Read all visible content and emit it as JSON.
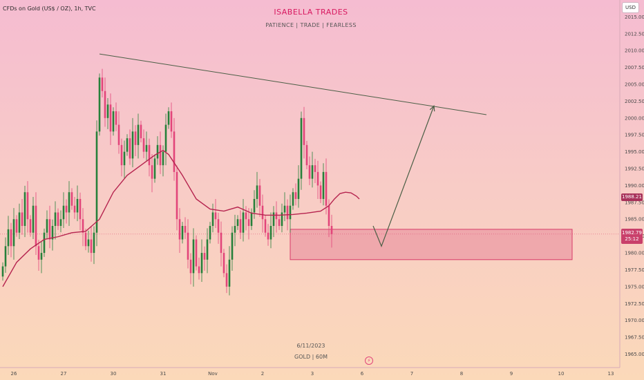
{
  "header": {
    "symbol": "CFDs on Gold (US$ / OZ), 1h, TVC",
    "brand": "ISABELLA TRADES",
    "tagline": "PATIENCE  |  TRADE  |  FEARLESS"
  },
  "watermark": {
    "date": "6/11/2023",
    "subtitle": "GOLD | 60M"
  },
  "currency": "USD",
  "price_tags": {
    "previous": "1988.21",
    "current": "1982.79",
    "countdown": "25:12"
  },
  "colors": {
    "up": "#26803a",
    "down": "#e2457a",
    "ma": "#b5234e",
    "trendline": "#4a5e45",
    "zone_fill": "#e67f96",
    "zone_border": "#d83a68"
  },
  "icons": {
    "replay": "lightning-bolt-icon"
  },
  "chart_data": {
    "type": "candlestick",
    "title": "",
    "xlabel": "",
    "ylabel": "",
    "ylim": [
      1963.0,
      2017.5
    ],
    "yticks": [
      "2015.00",
      "2012.50",
      "2010.00",
      "2007.50",
      "2005.00",
      "2002.50",
      "2000.00",
      "1997.50",
      "1995.00",
      "1992.50",
      "1990.00",
      "1987.50",
      "1985.00",
      "1982.50",
      "1980.00",
      "1977.50",
      "1975.00",
      "1972.50",
      "1970.00",
      "1967.50",
      "1965.00"
    ],
    "xlim": [
      0,
      234
    ],
    "xticks": [
      {
        "label": "26",
        "x": 4
      },
      {
        "label": "27",
        "x": 22
      },
      {
        "label": "30",
        "x": 40
      },
      {
        "label": "31",
        "x": 58
      },
      {
        "label": "Nov",
        "x": 76
      },
      {
        "label": "2",
        "x": 94
      },
      {
        "label": "3",
        "x": 112
      },
      {
        "label": "6",
        "x": 130
      },
      {
        "label": "7",
        "x": 148
      },
      {
        "label": "8",
        "x": 166
      },
      {
        "label": "9",
        "x": 184
      },
      {
        "label": "10",
        "x": 202
      },
      {
        "label": "13",
        "x": 220
      }
    ],
    "candles_close": [
      1978.0,
      1981.0,
      1983.5,
      1981.0,
      1985.0,
      1983.0,
      1986.0,
      1984.0,
      1989.0,
      1985.0,
      1983.0,
      1987.0,
      1981.0,
      1979.0,
      1980.0,
      1983.0,
      1985.0,
      1982.0,
      1984.0,
      1986.0,
      1984.0,
      1985.0,
      1987.0,
      1986.0,
      1989.0,
      1987.0,
      1986.0,
      1988.0,
      1985.0,
      1983.0,
      1981.0,
      1982.0,
      1980.0,
      1983.0,
      1998.0,
      2006.0,
      2004.0,
      2000.0,
      2002.0,
      1998.0,
      2001.0,
      1999.0,
      1996.0,
      1993.0,
      1995.0,
      1997.0,
      1994.0,
      1998.0,
      1996.0,
      1999.0,
      1997.0,
      1995.0,
      1996.0,
      1993.0,
      1991.0,
      1994.0,
      1996.0,
      1993.0,
      1995.0,
      1999.0,
      2001.0,
      1998.0,
      1992.0,
      1985.0,
      1982.0,
      1984.0,
      1983.0,
      1979.0,
      1977.0,
      1982.0,
      1978.0,
      1977.0,
      1980.0,
      1979.0,
      1982.0,
      1984.0,
      1986.0,
      1985.0,
      1983.0,
      1980.0,
      1977.0,
      1975.0,
      1979.0,
      1983.0,
      1984.0,
      1985.0,
      1983.0,
      1986.0,
      1985.0,
      1984.0,
      1986.0,
      1988.0,
      1990.0,
      1987.0,
      1985.0,
      1983.0,
      1982.0,
      1984.0,
      1986.0,
      1985.0,
      1984.0,
      1986.0,
      1987.0,
      1985.0,
      1987.0,
      1989.0,
      1988.0,
      1991.0,
      2000.0,
      1996.0,
      1993.0,
      1991.0,
      1993.0,
      1992.0,
      1990.0,
      1988.0,
      1992.0,
      1987.0,
      1984.0,
      1982.79
    ],
    "series": [
      {
        "name": "",
        "type": "line",
        "role": "moving-average",
        "x": [
          0,
          5,
          10,
          15,
          20,
          25,
          30,
          35,
          40,
          45,
          50,
          55,
          58,
          60,
          65,
          70,
          75,
          80,
          85,
          90,
          95,
          100,
          105,
          110,
          115,
          118,
          120,
          122,
          124,
          126,
          128,
          129
        ],
        "values": [
          1975.0,
          1978.6,
          1980.6,
          1982.0,
          1982.4,
          1983.0,
          1983.2,
          1985.0,
          1989.0,
          1991.5,
          1993.0,
          1994.5,
          1995.2,
          1994.6,
          1991.5,
          1988.0,
          1986.5,
          1986.2,
          1986.8,
          1985.9,
          1985.6,
          1985.6,
          1985.7,
          1985.9,
          1986.2,
          1987.0,
          1988.0,
          1988.8,
          1989.0,
          1988.9,
          1988.4,
          1988.0
        ]
      }
    ],
    "annotations": [
      {
        "type": "trendline",
        "points": [
          [
            35,
            2009.5
          ],
          [
            175,
            2000.5
          ]
        ]
      },
      {
        "type": "arrow",
        "points": [
          [
            134,
            1984.0
          ],
          [
            137,
            1981.0
          ],
          [
            156,
            2001.8
          ]
        ]
      },
      {
        "type": "zone",
        "x": [
          104,
          206
        ],
        "y": [
          1979.0,
          1983.5
        ]
      },
      {
        "type": "hline",
        "y": 1982.79
      }
    ]
  }
}
